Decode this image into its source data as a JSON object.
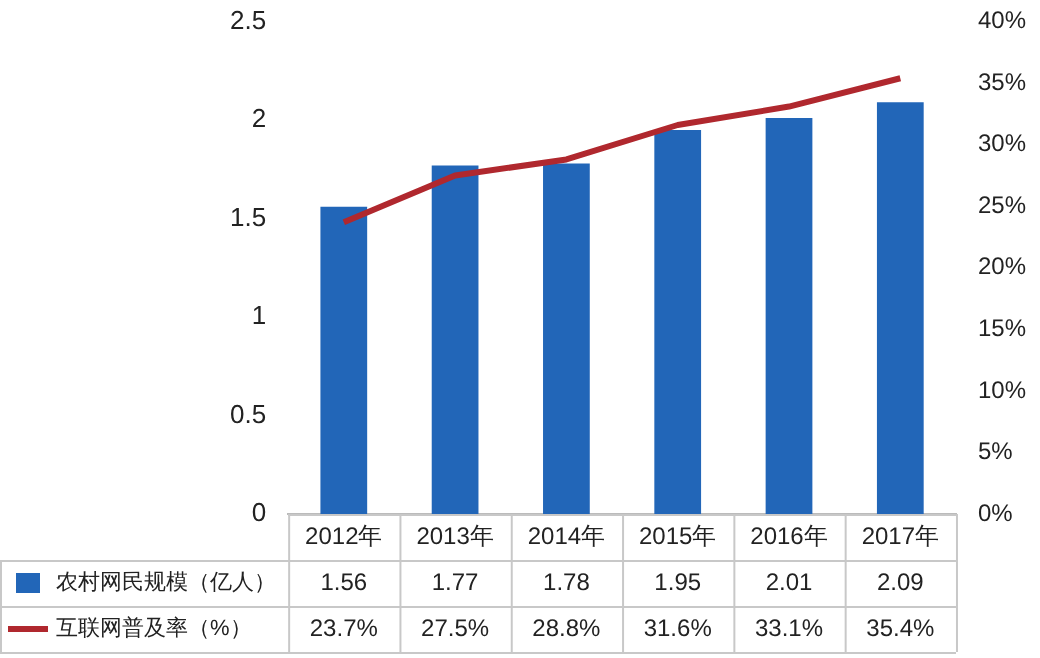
{
  "chart_data": {
    "type": "bar",
    "categories": [
      "2012年",
      "2013年",
      "2014年",
      "2015年",
      "2016年",
      "2017年"
    ],
    "series": [
      {
        "name": "农村网民规模（亿人）",
        "color": "#2266b8",
        "values": [
          1.56,
          1.77,
          1.78,
          1.95,
          2.01,
          2.09
        ],
        "value_labels": [
          "1.56",
          "1.77",
          "1.78",
          "1.95",
          "2.01",
          "2.09"
        ]
      },
      {
        "name": "互联网普及率（%）",
        "type": "line",
        "axis": "y2",
        "color": "#b0282e",
        "values": [
          23.7,
          27.5,
          28.8,
          31.6,
          33.1,
          35.4
        ],
        "value_labels": [
          "23.7%",
          "27.5%",
          "28.8%",
          "31.6%",
          "33.1%",
          "35.4%"
        ]
      }
    ],
    "ylim": [
      0,
      2.5
    ],
    "yticks": [
      0,
      0.5,
      1,
      1.5,
      2,
      2.5
    ],
    "y2lim": [
      0,
      40
    ],
    "y2ticks": [
      {
        "value": 0,
        "label": "0%"
      },
      {
        "value": 5,
        "label": "5%"
      },
      {
        "value": 10,
        "label": "10%"
      },
      {
        "value": 15,
        "label": "15%"
      },
      {
        "value": 20,
        "label": "20%"
      },
      {
        "value": 25,
        "label": "25%"
      },
      {
        "value": 30,
        "label": "30%"
      },
      {
        "value": 35,
        "label": "35%"
      },
      {
        "value": 40,
        "label": "40%"
      }
    ],
    "grid": false,
    "legend": "bottom",
    "marker": "none",
    "line_style": "solid"
  }
}
